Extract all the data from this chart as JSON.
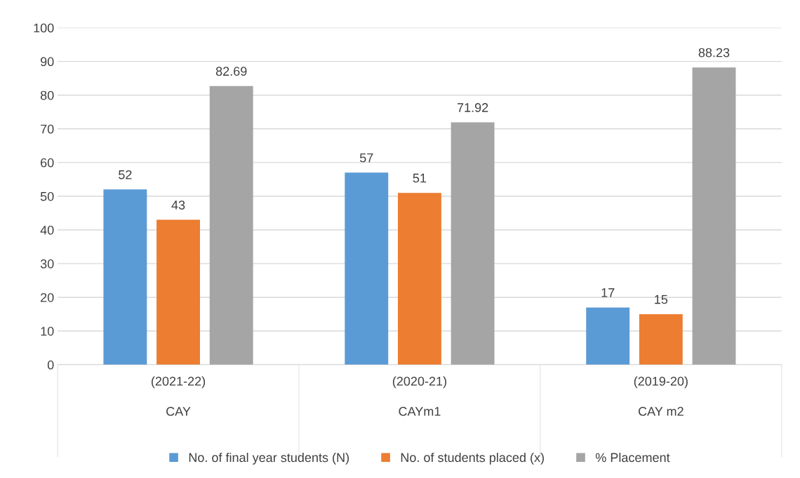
{
  "chart_data": {
    "type": "bar",
    "categories": [
      "(2021-22)\nCAY",
      "(2020-21)\nCAYm1",
      "(2019-20)\nCAY m2"
    ],
    "series": [
      {
        "name": "No. of final year students (N)",
        "color": "#5b9bd5",
        "values": [
          52,
          57,
          17
        ]
      },
      {
        "name": "No. of students placed (x)",
        "color": "#ed7d31",
        "values": [
          43,
          51,
          15
        ]
      },
      {
        "name": "% Placement",
        "color": "#a5a5a5",
        "values": [
          82.69,
          71.92,
          88.23
        ]
      }
    ],
    "ylim": [
      0,
      100
    ],
    "yticks": [
      0,
      10,
      20,
      30,
      40,
      50,
      60,
      70,
      80,
      90,
      100
    ],
    "grid": "y",
    "legend": "bottom",
    "data_labels": true
  }
}
